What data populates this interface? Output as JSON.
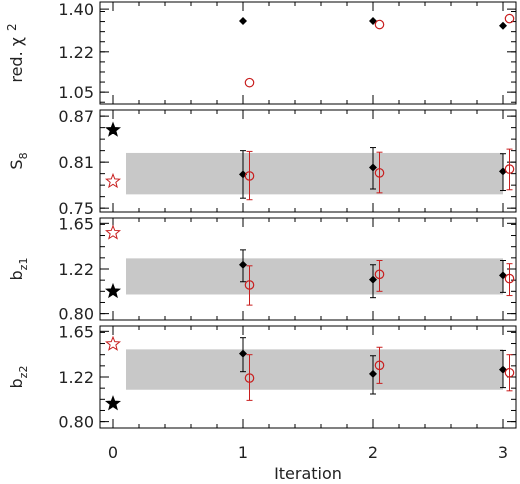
{
  "chart_data": {
    "type": "scatter",
    "xlabel": "Iteration",
    "x_ticks": [
      "0",
      "1",
      "2",
      "3"
    ],
    "xlim": [
      -0.1,
      3.1
    ],
    "colors": {
      "black_series": "#000000",
      "red_series": "#c81e1e",
      "band": "#c8c8c8"
    },
    "panels": [
      {
        "ylabel": "red. χ ²",
        "ylabel_main": "red. χ",
        "ylabel_sup": "2",
        "ylim": [
          1.0,
          1.43
        ],
        "yticks": [
          "1.05",
          "1.22",
          "1.40"
        ],
        "ytick_values": [
          1.05,
          1.22,
          1.4
        ],
        "band": null,
        "series": [
          {
            "marker": "filled-diamond",
            "color": "black",
            "points": [
              {
                "x": 1,
                "y": 1.35
              },
              {
                "x": 2,
                "y": 1.35
              },
              {
                "x": 3,
                "y": 1.33
              }
            ]
          },
          {
            "marker": "open-circle",
            "color": "red",
            "points": [
              {
                "x": 1.05,
                "y": 1.09
              },
              {
                "x": 2.05,
                "y": 1.335
              },
              {
                "x": 3.05,
                "y": 1.36
              }
            ]
          }
        ],
        "stars": []
      },
      {
        "ylabel": "S8",
        "ylabel_main": "S",
        "ylabel_sub": "8",
        "ylim": [
          0.745,
          0.878
        ],
        "yticks": [
          "0.75",
          "0.81",
          "0.87"
        ],
        "ytick_values": [
          0.75,
          0.81,
          0.87
        ],
        "band": [
          0.768,
          0.822
        ],
        "series": [
          {
            "marker": "filled-diamond",
            "color": "black",
            "points": [
              {
                "x": 1,
                "y": 0.794,
                "err": [
                  0.763,
                  0.825
                ]
              },
              {
                "x": 2,
                "y": 0.803,
                "err": [
                  0.775,
                  0.829
                ]
              },
              {
                "x": 3,
                "y": 0.798,
                "err": [
                  0.773,
                  0.821
                ]
              }
            ]
          },
          {
            "marker": "open-circle",
            "color": "red",
            "points": [
              {
                "x": 1.05,
                "y": 0.792,
                "err": [
                  0.761,
                  0.824
                ]
              },
              {
                "x": 2.05,
                "y": 0.796,
                "err": [
                  0.77,
                  0.823
                ]
              },
              {
                "x": 3.05,
                "y": 0.801,
                "err": [
                  0.774,
                  0.827
                ]
              }
            ]
          }
        ],
        "stars": [
          {
            "x": 0,
            "y": 0.852,
            "style": "filled",
            "color": "black"
          },
          {
            "x": 0,
            "y": 0.785,
            "style": "open",
            "color": "red"
          }
        ]
      },
      {
        "ylabel": "bz1",
        "ylabel_main": "b",
        "ylabel_sub": "z1",
        "ylim": [
          0.74,
          1.7
        ],
        "yticks": [
          "0.80",
          "1.22",
          "1.65"
        ],
        "ytick_values": [
          0.8,
          1.22,
          1.65
        ],
        "band": [
          0.98,
          1.32
        ],
        "series": [
          {
            "marker": "filled-diamond",
            "color": "black",
            "points": [
              {
                "x": 1,
                "y": 1.26,
                "err": [
                  1.1,
                  1.4
                ]
              },
              {
                "x": 2,
                "y": 1.12,
                "err": [
                  0.95,
                  1.26
                ]
              },
              {
                "x": 3,
                "y": 1.16,
                "err": [
                  1.0,
                  1.3
                ]
              }
            ]
          },
          {
            "marker": "open-circle",
            "color": "red",
            "points": [
              {
                "x": 1.05,
                "y": 1.07,
                "err": [
                  0.88,
                  1.25
                ]
              },
              {
                "x": 2.05,
                "y": 1.17,
                "err": [
                  1.01,
                  1.3
                ]
              },
              {
                "x": 3.05,
                "y": 1.13,
                "err": [
                  0.97,
                  1.27
                ]
              }
            ]
          }
        ],
        "stars": [
          {
            "x": 0,
            "y": 1.01,
            "style": "filled",
            "color": "black"
          },
          {
            "x": 0,
            "y": 1.56,
            "style": "open",
            "color": "red"
          }
        ]
      },
      {
        "ylabel": "bz2",
        "ylabel_main": "b",
        "ylabel_sub": "z2",
        "ylim": [
          0.74,
          1.7
        ],
        "yticks": [
          "0.80",
          "1.22",
          "1.65"
        ],
        "ytick_values": [
          0.8,
          1.22,
          1.65
        ],
        "band": [
          1.1,
          1.48
        ],
        "series": [
          {
            "marker": "filled-diamond",
            "color": "black",
            "points": [
              {
                "x": 1,
                "y": 1.44,
                "err": [
                  1.27,
                  1.59
                ]
              },
              {
                "x": 2,
                "y": 1.25,
                "err": [
                  1.06,
                  1.42
                ]
              },
              {
                "x": 3,
                "y": 1.29,
                "err": [
                  1.12,
                  1.47
                ]
              }
            ]
          },
          {
            "marker": "open-circle",
            "color": "red",
            "points": [
              {
                "x": 1.05,
                "y": 1.21,
                "err": [
                  1.0,
                  1.43
                ]
              },
              {
                "x": 2.05,
                "y": 1.33,
                "err": [
                  1.16,
                  1.5
                ]
              },
              {
                "x": 3.05,
                "y": 1.26,
                "err": [
                  1.09,
                  1.43
                ]
              }
            ]
          }
        ],
        "stars": [
          {
            "x": 0,
            "y": 0.97,
            "style": "filled",
            "color": "black"
          },
          {
            "x": 0,
            "y": 1.53,
            "style": "open",
            "color": "red"
          }
        ]
      }
    ]
  }
}
